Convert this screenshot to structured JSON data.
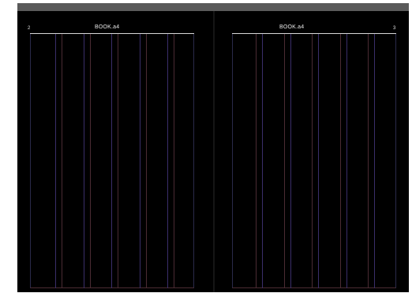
{
  "document": {
    "left_page": {
      "running_header": "BOOK.a4",
      "page_number": "2"
    },
    "right_page": {
      "running_header": "BOOK.a4",
      "page_number": "3"
    }
  },
  "colors": {
    "canvas": "#000000",
    "topbar": "#5a5a5a",
    "guide_purple": "#3a2e6a",
    "guide_red": "#4a2b33",
    "header_text": "#e8e8e8"
  }
}
